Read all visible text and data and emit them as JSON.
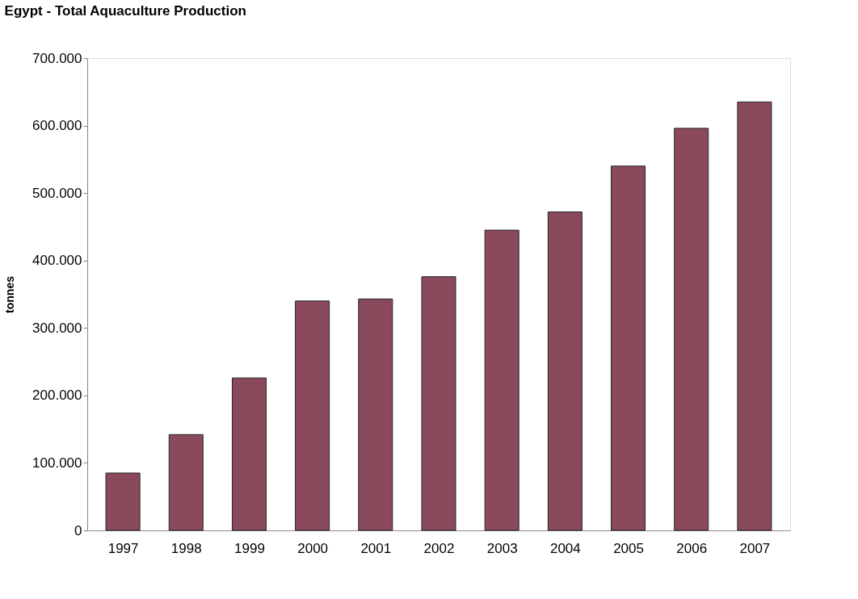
{
  "chart_data": {
    "type": "bar",
    "title": "Egypt - Total Aquaculture Production",
    "ylabel": "tonnes",
    "categories": [
      "1997",
      "1998",
      "1999",
      "2000",
      "2001",
      "2002",
      "2003",
      "2004",
      "2005",
      "2006",
      "2007"
    ],
    "values": [
      85000,
      142000,
      226000,
      340000,
      343000,
      376000,
      445000,
      472000,
      540000,
      596000,
      635000
    ],
    "color": "#8a4a5c",
    "ylim": [
      0,
      700000
    ],
    "yticks": [
      0,
      {
        "value": 100000,
        "label": "100.000"
      },
      {
        "value": 200000,
        "label": "200.000"
      },
      {
        "value": 300000,
        "label": "300.000"
      },
      {
        "value": 400000,
        "label": "400.000"
      },
      {
        "value": 500000,
        "label": "500.000"
      },
      {
        "value": 600000,
        "label": "600.000"
      },
      {
        "value": 700000,
        "label": "700.000"
      }
    ],
    "grid": false
  }
}
